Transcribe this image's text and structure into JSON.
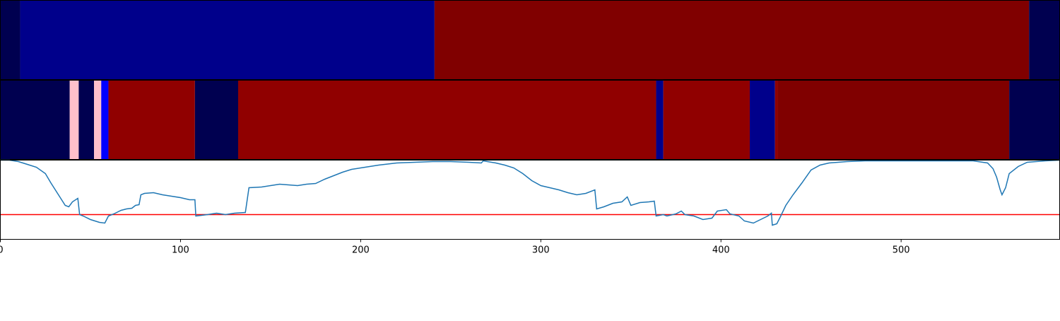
{
  "chart_data": [
    {
      "type": "band",
      "xlim": [
        0,
        588
      ],
      "segments": [
        {
          "start": 0,
          "end": 11,
          "color": "#000050"
        },
        {
          "start": 11,
          "end": 241,
          "color": "#00008b"
        },
        {
          "start": 241,
          "end": 571,
          "color": "#800000"
        },
        {
          "start": 571,
          "end": 588,
          "color": "#000050"
        }
      ]
    },
    {
      "type": "band",
      "xlim": [
        0,
        588
      ],
      "segments": [
        {
          "start": 0,
          "end": 38.5,
          "color": "#000050"
        },
        {
          "start": 38.5,
          "end": 43.5,
          "color": "#ffc0cb"
        },
        {
          "start": 43.5,
          "end": 52,
          "color": "#000050"
        },
        {
          "start": 52,
          "end": 56,
          "color": "#ffc0cb"
        },
        {
          "start": 56,
          "end": 60,
          "color": "#0000ff"
        },
        {
          "start": 60,
          "end": 108,
          "color": "#900000"
        },
        {
          "start": 108,
          "end": 132,
          "color": "#000050"
        },
        {
          "start": 132,
          "end": 364,
          "color": "#900000"
        },
        {
          "start": 364,
          "end": 368,
          "color": "#00008b"
        },
        {
          "start": 368,
          "end": 416,
          "color": "#900000"
        },
        {
          "start": 416,
          "end": 430,
          "color": "#00008b"
        },
        {
          "start": 430,
          "end": 431.5,
          "color": "#900000"
        },
        {
          "start": 431.5,
          "end": 560,
          "color": "#800000"
        },
        {
          "start": 560,
          "end": 588,
          "color": "#000050"
        }
      ]
    },
    {
      "type": "line",
      "xlim": [
        0,
        588
      ],
      "ylim": [
        0,
        112
      ],
      "xticks": [
        0,
        100,
        200,
        300,
        400,
        500
      ],
      "hline": 35,
      "hline_color": "#ff0000",
      "color": "#1f77b4",
      "x": [
        0,
        5,
        10,
        15,
        20,
        25,
        28,
        30,
        33,
        36,
        38,
        40,
        43,
        44,
        46,
        50,
        55,
        58,
        60,
        63,
        67,
        70,
        73,
        75,
        77,
        78,
        80,
        85,
        90,
        95,
        100,
        105,
        108,
        108.5,
        115,
        120,
        125,
        130,
        136,
        138,
        145,
        150,
        155,
        160,
        165,
        170,
        175,
        180,
        185,
        190,
        195,
        200,
        210,
        220,
        230,
        240,
        250,
        260,
        267,
        268,
        275,
        280,
        285,
        290,
        295,
        300,
        305,
        310,
        315,
        320,
        325,
        330,
        331,
        335,
        340,
        345,
        348,
        350,
        355,
        360,
        363,
        364,
        368,
        370,
        375,
        378,
        380,
        385,
        390,
        395,
        398,
        403,
        405,
        410,
        413,
        418,
        422,
        426,
        428,
        428.5,
        431,
        433,
        436,
        440,
        445,
        450,
        455,
        460,
        470,
        480,
        500,
        540,
        548,
        551,
        553,
        555,
        556,
        558,
        560,
        565,
        570,
        580,
        588
      ],
      "values": [
        112,
        112,
        110,
        106,
        102,
        93,
        80,
        72,
        60,
        48,
        46,
        53,
        58,
        35,
        33,
        28,
        24,
        23,
        33,
        36,
        41,
        43,
        44,
        48,
        49,
        63,
        65,
        66,
        63,
        61,
        59,
        56,
        56,
        33,
        35,
        37,
        35,
        37,
        38,
        73,
        74,
        76,
        78,
        77,
        76,
        78,
        79,
        85,
        90,
        95,
        99,
        101,
        105,
        108,
        109,
        110,
        110,
        109,
        108,
        111,
        108,
        105,
        101,
        93,
        83,
        76,
        73,
        70,
        66,
        63,
        65,
        70,
        43,
        46,
        51,
        53,
        60,
        48,
        52,
        53,
        54,
        33,
        35,
        33,
        36,
        40,
        35,
        33,
        28,
        30,
        40,
        42,
        36,
        33,
        26,
        23,
        28,
        33,
        37,
        20,
        22,
        32,
        48,
        63,
        80,
        98,
        105,
        108,
        110,
        111,
        111,
        111,
        108,
        100,
        88,
        70,
        63,
        73,
        93,
        103,
        109,
        111,
        112
      ]
    }
  ]
}
